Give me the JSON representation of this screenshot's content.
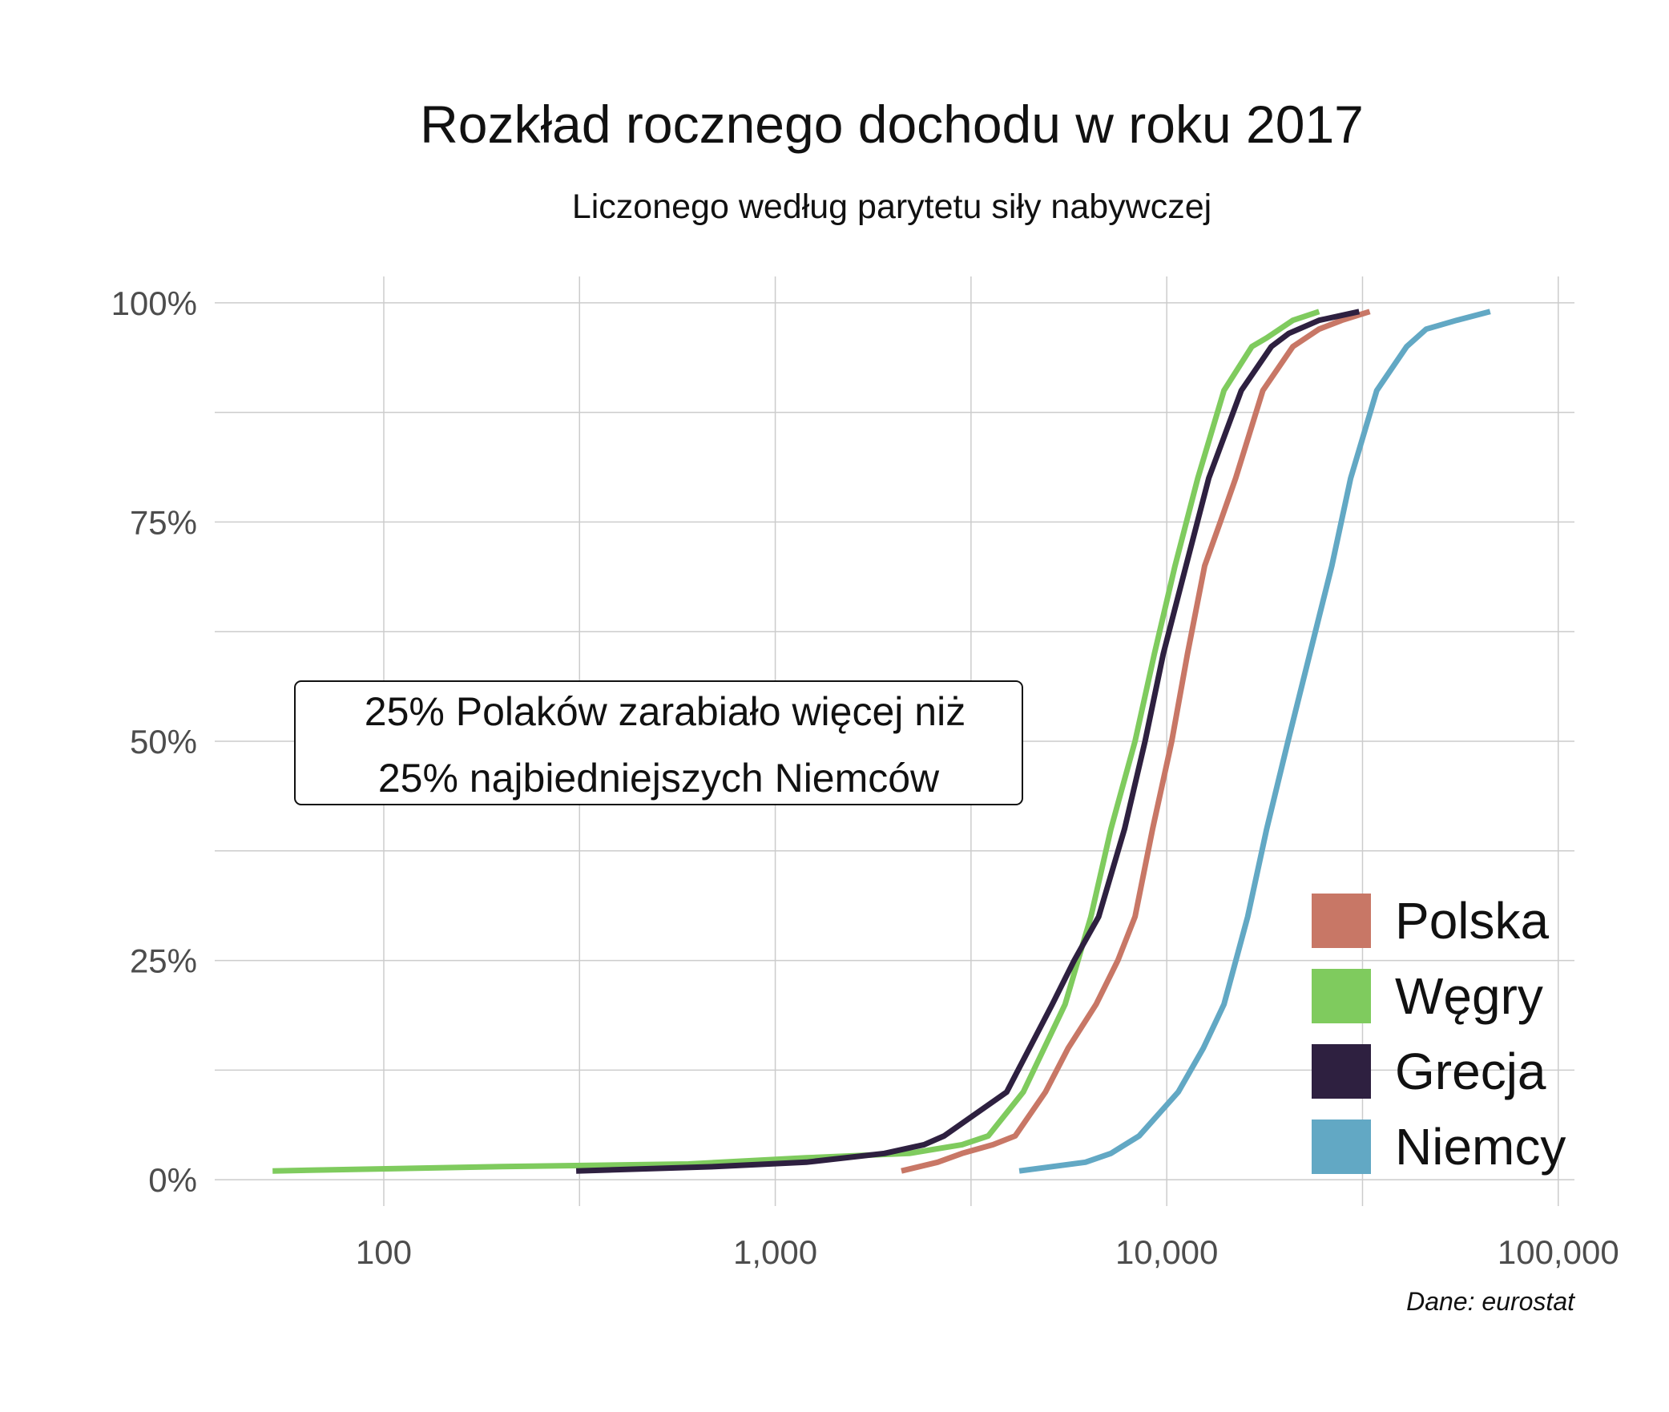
{
  "chart_data": {
    "type": "line",
    "title": "Rozkład rocznego dochodu w roku 2017",
    "subtitle": "Liczonego według parytetu siły nabywczej",
    "caption": "Dane: eurostat",
    "x_scale": "log",
    "xlim": [
      37,
      110000
    ],
    "ylim": [
      -0.03,
      1.03
    ],
    "x_ticks": [
      100,
      1000,
      10000,
      100000
    ],
    "x_tick_labels": [
      "100",
      "1,000",
      "10,000",
      "100,000"
    ],
    "y_ticks": [
      0,
      0.25,
      0.5,
      0.75,
      1.0
    ],
    "y_tick_labels": [
      "0%",
      "25%",
      "50%",
      "75%",
      "100%"
    ],
    "grid": true,
    "legend_position": "bottom-right",
    "annotation": {
      "lines": [
        "25% Polaków zarabiało więcej niż",
        "25% najbiedniejszych Niemców"
      ]
    },
    "series": [
      {
        "name": "Polska",
        "color": "#C87766",
        "points": [
          [
            2100,
            0.01
          ],
          [
            2600,
            0.02
          ],
          [
            3000,
            0.03
          ],
          [
            3600,
            0.04
          ],
          [
            4100,
            0.05
          ],
          [
            4900,
            0.1
          ],
          [
            5600,
            0.15
          ],
          [
            6600,
            0.2
          ],
          [
            7500,
            0.25
          ],
          [
            8300,
            0.3
          ],
          [
            9200,
            0.4
          ],
          [
            10300,
            0.5
          ],
          [
            11300,
            0.6
          ],
          [
            12500,
            0.7
          ],
          [
            13700,
            0.75
          ],
          [
            15000,
            0.8
          ],
          [
            17600,
            0.9
          ],
          [
            21000,
            0.95
          ],
          [
            24500,
            0.97
          ],
          [
            28000,
            0.98
          ],
          [
            33000,
            0.99
          ]
        ]
      },
      {
        "name": "Węgry",
        "color": "#7FCB5E",
        "points": [
          [
            52,
            0.01
          ],
          [
            200,
            0.015
          ],
          [
            600,
            0.018
          ],
          [
            1200,
            0.025
          ],
          [
            2200,
            0.03
          ],
          [
            3000,
            0.04
          ],
          [
            3500,
            0.05
          ],
          [
            4300,
            0.1
          ],
          [
            5500,
            0.2
          ],
          [
            6400,
            0.3
          ],
          [
            7200,
            0.4
          ],
          [
            8300,
            0.5
          ],
          [
            9300,
            0.6
          ],
          [
            10500,
            0.7
          ],
          [
            12000,
            0.8
          ],
          [
            14000,
            0.9
          ],
          [
            16500,
            0.95
          ],
          [
            18000,
            0.96
          ],
          [
            21000,
            0.98
          ],
          [
            24500,
            0.99
          ]
        ]
      },
      {
        "name": "Grecja",
        "color": "#2E2040",
        "points": [
          [
            310,
            0.01
          ],
          [
            700,
            0.015
          ],
          [
            1200,
            0.02
          ],
          [
            1900,
            0.03
          ],
          [
            2400,
            0.04
          ],
          [
            2700,
            0.05
          ],
          [
            3900,
            0.1
          ],
          [
            5100,
            0.2
          ],
          [
            5800,
            0.25
          ],
          [
            6700,
            0.3
          ],
          [
            7800,
            0.4
          ],
          [
            8800,
            0.5
          ],
          [
            9800,
            0.6
          ],
          [
            11200,
            0.7
          ],
          [
            12800,
            0.8
          ],
          [
            15500,
            0.9
          ],
          [
            18500,
            0.95
          ],
          [
            20500,
            0.965
          ],
          [
            24500,
            0.98
          ],
          [
            31000,
            0.99
          ]
        ]
      },
      {
        "name": "Niemcy",
        "color": "#62A8C4",
        "points": [
          [
            4200,
            0.01
          ],
          [
            6200,
            0.02
          ],
          [
            7200,
            0.03
          ],
          [
            8500,
            0.05
          ],
          [
            10700,
            0.1
          ],
          [
            12400,
            0.15
          ],
          [
            14000,
            0.2
          ],
          [
            16100,
            0.3
          ],
          [
            18000,
            0.4
          ],
          [
            20400,
            0.5
          ],
          [
            23200,
            0.6
          ],
          [
            26400,
            0.7
          ],
          [
            29500,
            0.8
          ],
          [
            34400,
            0.9
          ],
          [
            41000,
            0.95
          ],
          [
            46000,
            0.97
          ],
          [
            55000,
            0.98
          ],
          [
            67000,
            0.99
          ]
        ]
      }
    ]
  }
}
